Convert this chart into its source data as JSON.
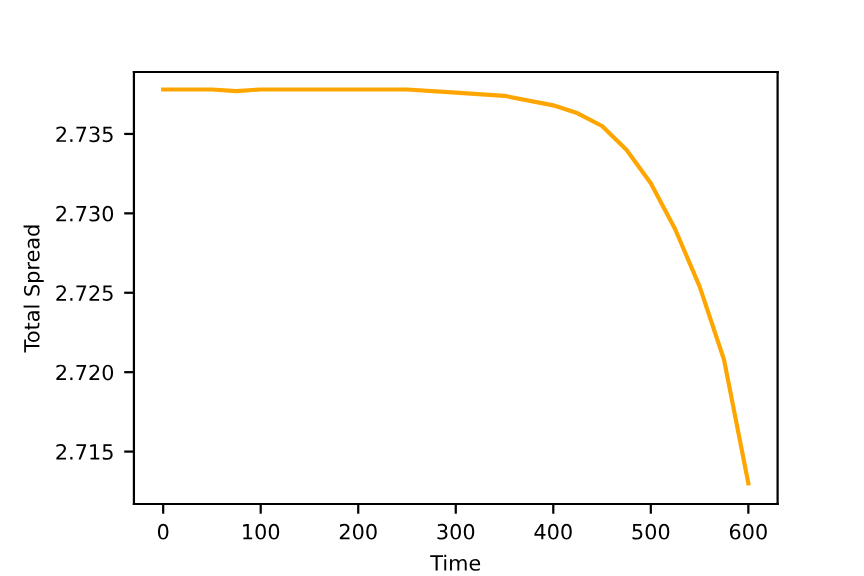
{
  "chart_data": {
    "type": "line",
    "xlabel": "Time",
    "ylabel": "Total Spread",
    "color": "#ffa500",
    "x": [
      0,
      25,
      50,
      75,
      100,
      150,
      200,
      250,
      300,
      350,
      400,
      425,
      450,
      475,
      500,
      525,
      550,
      575,
      600
    ],
    "values": [
      2.7378,
      2.7378,
      2.7378,
      2.7377,
      2.7378,
      2.7378,
      2.7378,
      2.7378,
      2.7376,
      2.7374,
      2.7368,
      2.7363,
      2.7355,
      2.734,
      2.7319,
      2.729,
      2.7254,
      2.7208,
      2.713
    ],
    "xlim": [
      -30,
      630
    ],
    "xticks": [
      0,
      100,
      200,
      300,
      400,
      500,
      600
    ],
    "ylim": [
      2.7117,
      2.7389
    ],
    "yticks": [
      2.715,
      {
        "value": 2.72,
        "label": "2.720"
      },
      2.725,
      {
        "value": 2.73,
        "label": "2.730"
      },
      2.735
    ],
    "grid": false
  }
}
